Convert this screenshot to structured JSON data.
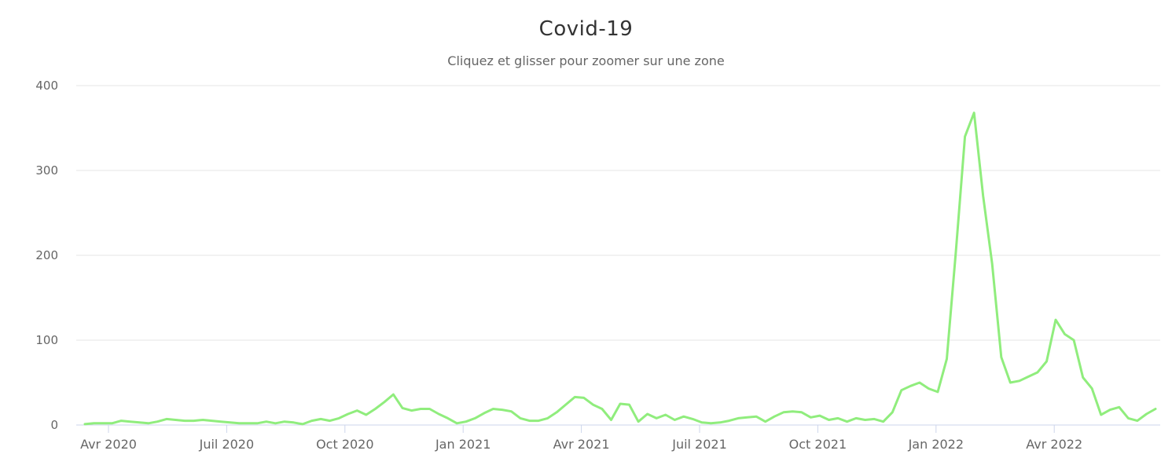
{
  "chart": {
    "title": "Covid-19",
    "subtitle": "Cliquez et glisser pour zoomer sur une zone"
  },
  "chart_data": {
    "type": "line",
    "title": "Covid-19",
    "subtitle": "Cliquez et glisser pour zoomer sur une zone",
    "x_tick_labels": [
      "Avr 2020",
      "Juil 2020",
      "Oct 2020",
      "Jan 2021",
      "Avr 2021",
      "Juil 2021",
      "Oct 2021",
      "Jan 2022",
      "Avr 2022"
    ],
    "y_ticks": [
      0,
      100,
      200,
      300,
      400
    ],
    "ylim": [
      0,
      400
    ],
    "x_unit": "weekly points from mid-Mar 2020 to mid-Juin 2022",
    "grid": "horizontal",
    "legend": "none",
    "series": [
      {
        "name": "Covid-19",
        "color": "#90ed7d",
        "values": [
          1,
          2,
          2,
          2,
          5,
          4,
          3,
          2,
          4,
          7,
          6,
          5,
          5,
          6,
          5,
          4,
          3,
          2,
          2,
          2,
          4,
          2,
          4,
          3,
          1,
          5,
          7,
          5,
          8,
          13,
          17,
          12,
          19,
          27,
          36,
          20,
          17,
          19,
          19,
          13,
          8,
          2,
          4,
          8,
          14,
          19,
          18,
          16,
          8,
          5,
          5,
          8,
          15,
          24,
          33,
          32,
          24,
          19,
          6,
          25,
          24,
          4,
          13,
          8,
          12,
          6,
          10,
          7,
          3,
          2,
          3,
          5,
          8,
          9,
          10,
          4,
          10,
          15,
          16,
          15,
          9,
          11,
          6,
          8,
          4,
          8,
          6,
          7,
          4,
          15,
          41,
          46,
          50,
          43,
          39,
          78,
          205,
          340,
          368,
          270,
          190,
          80,
          50,
          52,
          57,
          62,
          75,
          124,
          107,
          100,
          56,
          43,
          12,
          18,
          21,
          8,
          5,
          13,
          19
        ]
      }
    ],
    "colors": {
      "line": "#90ed7d",
      "grid": "#e6e6e6",
      "axis": "#ccd6eb",
      "title": "#333333",
      "subtitle": "#666666",
      "labels": "#666666",
      "background": "#ffffff"
    }
  }
}
